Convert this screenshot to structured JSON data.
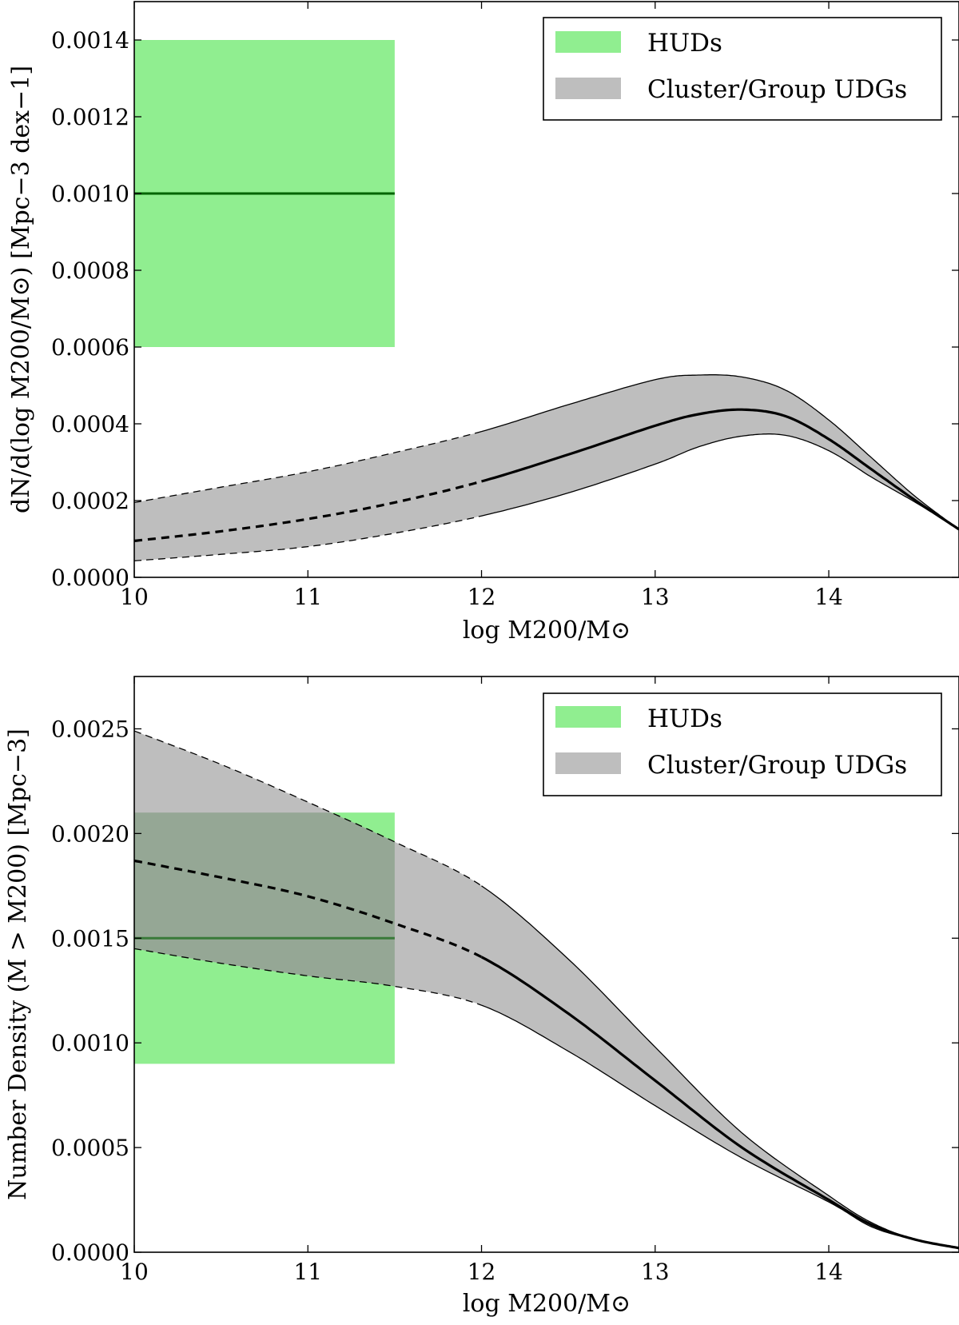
{
  "chart_data": [
    {
      "type": "area",
      "xlabel": "log M200/M⊙",
      "ylabel": "dN/d(log M200/M⊙) [Mpc−3 dex−1]",
      "xlim": [
        10,
        14.75
      ],
      "ylim": [
        0,
        0.0015
      ],
      "xticks": [
        10,
        11,
        12,
        13,
        14
      ],
      "xtick_labels": [
        "10",
        "11",
        "12",
        "13",
        "14"
      ],
      "yticks": [
        0,
        0.0002,
        0.0004,
        0.0006,
        0.0008,
        0.001,
        0.0012,
        0.0014
      ],
      "ytick_labels": [
        "0.0000",
        "0.0002",
        "0.0004",
        "0.0006",
        "0.0008",
        "0.0010",
        "0.0012",
        "0.0014"
      ],
      "legend": {
        "position": "top-right",
        "entries": [
          {
            "label": "HUDs",
            "color": "#90ee90"
          },
          {
            "label": "Cluster/Group UDGs",
            "color": "#bebebe"
          }
        ]
      },
      "huds": {
        "x_range": [
          10,
          11.5
        ],
        "value": 0.001,
        "lower": 0.0006,
        "upper": 0.0014,
        "fill": "#90ee90",
        "line_color": "#006400"
      },
      "udgs": {
        "fill": "#bebebe",
        "extrapolated_below": 12,
        "x": [
          10,
          10.5,
          11,
          11.5,
          12,
          12.5,
          13,
          13.25,
          13.5,
          13.75,
          14,
          14.25,
          14.5,
          14.75
        ],
        "median": [
          9.5e-05,
          0.00012,
          0.000152,
          0.000195,
          0.00025,
          0.00032,
          0.000395,
          0.000425,
          0.000437,
          0.00042,
          0.00036,
          0.00028,
          0.0002,
          0.000125
        ],
        "upper": [
          0.000195,
          0.000235,
          0.000275,
          0.000325,
          0.00038,
          0.00045,
          0.000515,
          0.000527,
          0.000522,
          0.000488,
          0.00041,
          0.00031,
          0.00021,
          0.000125
        ],
        "lower": [
          4.3e-05,
          6e-05,
          8e-05,
          0.000115,
          0.00016,
          0.00022,
          0.000295,
          0.00034,
          0.000368,
          0.00037,
          0.00033,
          0.00026,
          0.000195,
          0.000125
        ]
      }
    },
    {
      "type": "area",
      "xlabel": "log M200/M⊙",
      "ylabel": "Number Density (M > M200) [Mpc−3]",
      "xlim": [
        10,
        14.75
      ],
      "ylim": [
        0,
        0.00275
      ],
      "xticks": [
        10,
        11,
        12,
        13,
        14
      ],
      "xtick_labels": [
        "10",
        "11",
        "12",
        "13",
        "14"
      ],
      "yticks": [
        0,
        0.0005,
        0.001,
        0.0015,
        0.002,
        0.0025
      ],
      "ytick_labels": [
        "0.0000",
        "0.0005",
        "0.0010",
        "0.0015",
        "0.0020",
        "0.0025"
      ],
      "legend": {
        "position": "top-right",
        "entries": [
          {
            "label": "HUDs",
            "color": "#90ee90"
          },
          {
            "label": "Cluster/Group UDGs",
            "color": "#bebebe"
          }
        ]
      },
      "huds": {
        "x_range": [
          10,
          11.5
        ],
        "value": 0.0015,
        "lower": 0.0009,
        "upper": 0.0021,
        "fill": "#90ee90",
        "line_color": "#006400"
      },
      "udgs": {
        "fill": "#bebebe",
        "extrapolated_below": 12,
        "x": [
          10,
          10.5,
          11,
          11.5,
          12,
          12.5,
          13,
          13.5,
          14,
          14.25,
          14.5,
          14.75
        ],
        "median": [
          0.00187,
          0.00179,
          0.0017,
          0.00157,
          0.00141,
          0.00114,
          0.00082,
          0.0005,
          0.00025,
          0.00013,
          6e-05,
          2e-05
        ],
        "upper": [
          0.00249,
          0.00233,
          0.00215,
          0.00196,
          0.00175,
          0.0014,
          0.00098,
          0.00057,
          0.00027,
          0.00014,
          6e-05,
          2e-05
        ],
        "lower": [
          0.00145,
          0.00138,
          0.00132,
          0.00127,
          0.00118,
          0.00096,
          0.0007,
          0.00045,
          0.00024,
          0.00012,
          6e-05,
          2e-05
        ]
      }
    }
  ]
}
